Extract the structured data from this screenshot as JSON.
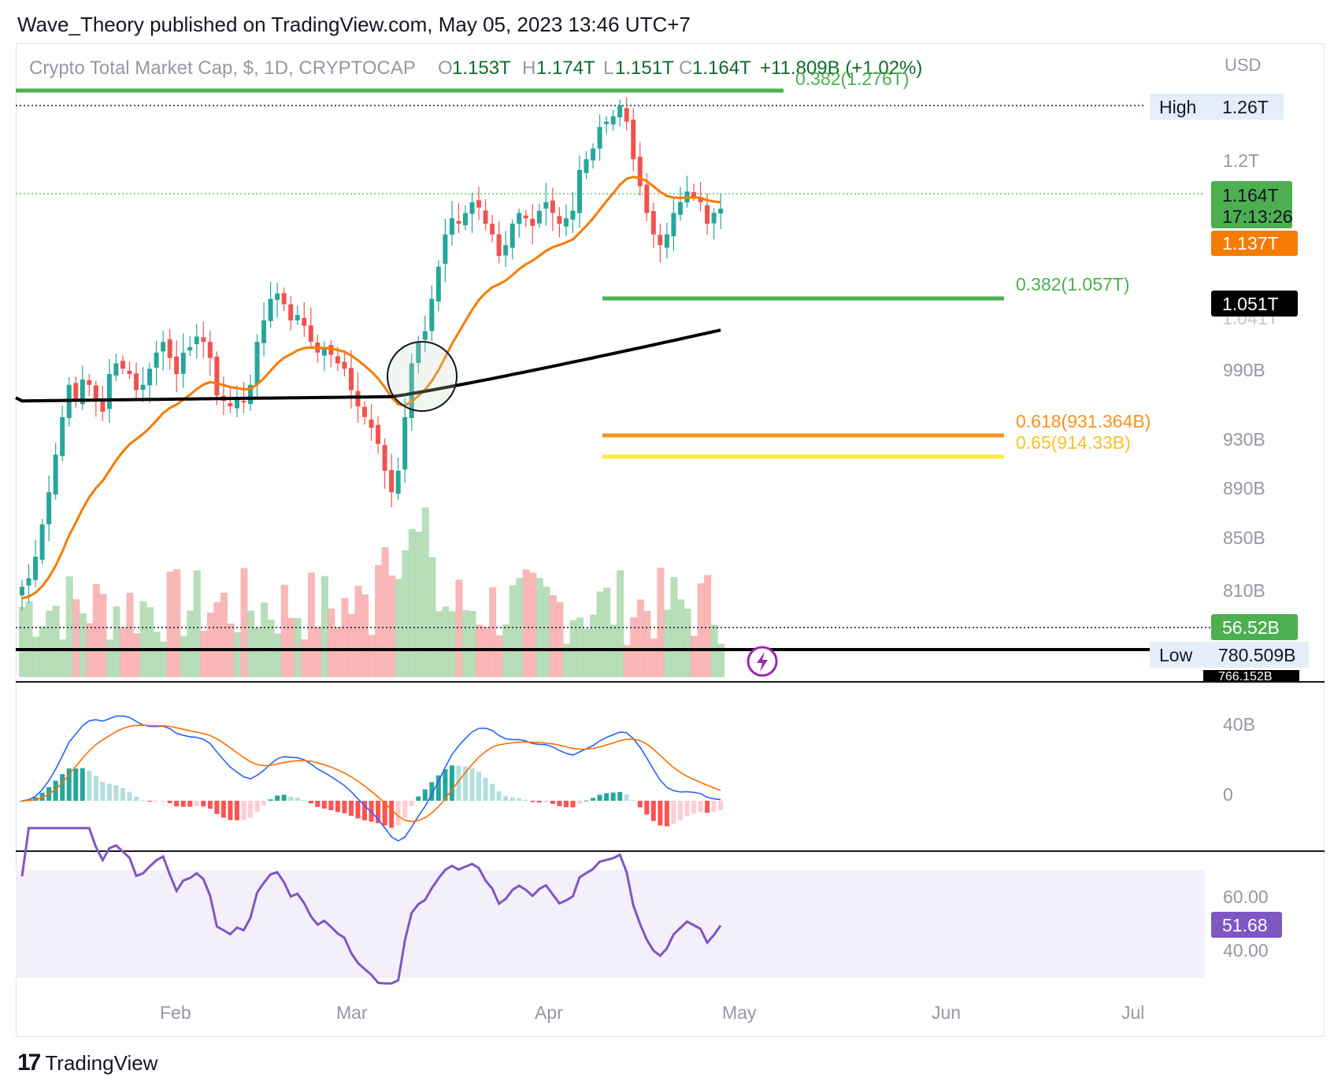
{
  "header": {
    "publisher_line": "Wave_Theory published on TradingView.com, May 05, 2023 13:46 UTC+7"
  },
  "legend": {
    "symbol": "Crypto Total Market Cap, $, 1D, CRYPTOCAP",
    "o_prefix": "O",
    "o_value": "1.153T",
    "h_prefix": "H",
    "h_value": "1.174T",
    "l_prefix": "L",
    "l_value": "1.151T",
    "c_prefix": "C",
    "c_value": "1.164T",
    "change": "+11.809B (+1.02%)"
  },
  "currency_label": "USD",
  "colors": {
    "up": "#26a69a",
    "down": "#ef5350",
    "ema50": "#f57c00",
    "ema200": "#000000",
    "fib_green": "#4caf50",
    "fib_orange": "#f7931a",
    "fib_yellow": "#ffeb3b",
    "rsi": "#7e57c2",
    "macd": "#2962ff",
    "signal": "#ff6d00",
    "vol_up": "#a5d6a7",
    "vol_down": "#f8a5a5"
  },
  "price_axis": {
    "tick_labels": [
      "1.2T",
      "990B",
      "930B",
      "890B",
      "850B",
      "810B"
    ],
    "high_tag": "High",
    "high_value": "1.26T",
    "low_tag": "Low",
    "low_value": "780.509B",
    "last_price": "1.164T",
    "countdown": "17:13:26",
    "ema50_value": "1.137T",
    "ema200_value": "1.051T",
    "volume_value": "56.52B",
    "hidden_partial_1": "1.041T",
    "hidden_partial_2": "766.152B"
  },
  "fib_levels": [
    {
      "label": "0.382(1.276T)",
      "color": "#4caf50"
    },
    {
      "label": "0.382(1.057T)",
      "color": "#4caf50"
    },
    {
      "label": "0.618(931.364B)",
      "color": "#f7931a"
    },
    {
      "label": "0.65(914.33B)",
      "color": "#fbc02d"
    }
  ],
  "macd_axis": {
    "tick_labels": [
      "40B",
      "0"
    ]
  },
  "rsi_axis": {
    "tick_labels": [
      "60.00",
      "40.00"
    ],
    "current_value": "51.68"
  },
  "time_axis": {
    "labels": [
      "Feb",
      "Mar",
      "Apr",
      "May",
      "Jun",
      "Jul"
    ]
  },
  "footer": {
    "brand": "TradingView",
    "logo_mark": "17"
  },
  "chart_data": {
    "type": "candlestick",
    "title": "Crypto Total Market Cap, $, 1D, CRYPTOCAP",
    "close_series_approx": [
      812,
      820,
      840,
      870,
      900,
      935,
      970,
      1000,
      985,
      1005,
      1000,
      985,
      975,
      1010,
      1020,
      1015,
      1010,
      995,
      1000,
      1015,
      1030,
      1040,
      1025,
      1010,
      1030,
      1035,
      1045,
      1040,
      1025,
      990,
      985,
      980,
      988,
      985,
      1000,
      1040,
      1060,
      1080,
      1085,
      1075,
      1060,
      1065,
      1055,
      1040,
      1030,
      1035,
      1028,
      1020,
      1015,
      995,
      980,
      970,
      960,
      945,
      920,
      900,
      920,
      970,
      1020,
      1040,
      1050,
      1080,
      1110,
      1140,
      1155,
      1150,
      1160,
      1170,
      1165,
      1150,
      1140,
      1120,
      1130,
      1150,
      1160,
      1155,
      1148,
      1162,
      1170,
      1160,
      1150,
      1155,
      1162,
      1200,
      1210,
      1220,
      1240,
      1245,
      1250,
      1260,
      1245,
      1210,
      1185,
      1160,
      1140,
      1130,
      1140,
      1160,
      1170,
      1180,
      1175,
      1170,
      1150,
      1160,
      1164
    ],
    "ema50_approx_range": [
      "812B",
      "1.137T"
    ],
    "ema200_approx_range": [
      "985B",
      "1.051T"
    ],
    "rsi_last": 51.68,
    "y_range": [
      "766B",
      "1.28T"
    ]
  }
}
